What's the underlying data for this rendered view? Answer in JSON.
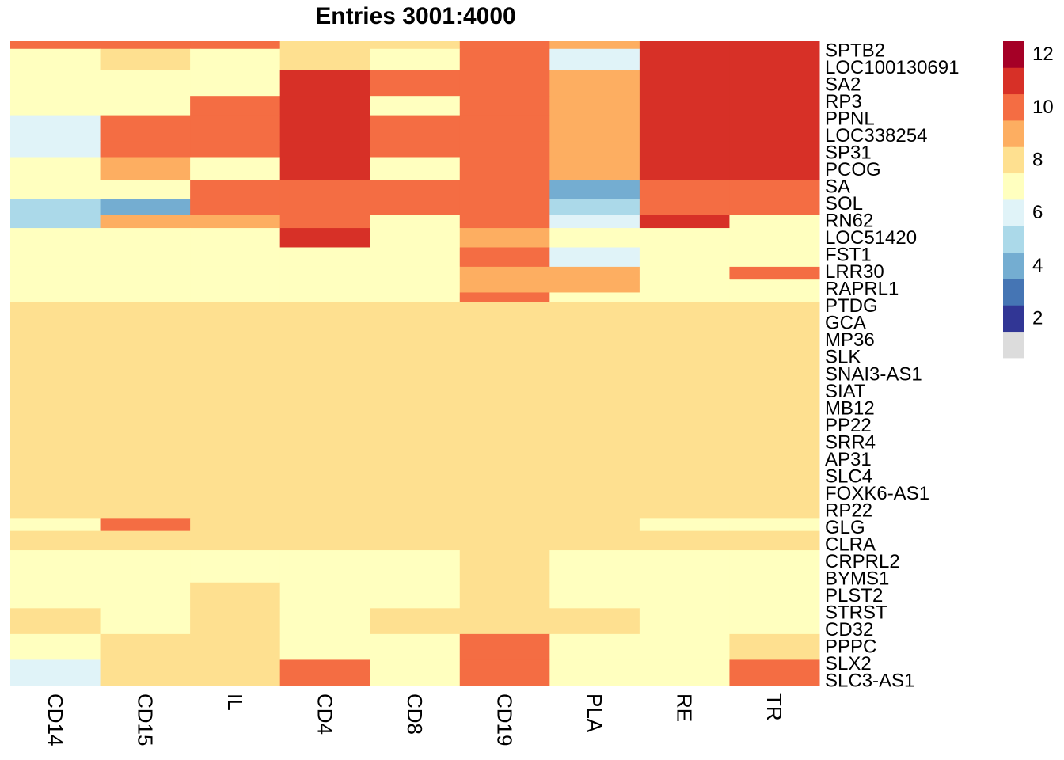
{
  "chart_data": {
    "type": "heatmap",
    "title": "Entries 3001:4000",
    "columns": [
      "CD14",
      "CD15",
      "IL",
      "CD4",
      "CD8",
      "CD19",
      "PLA",
      "RE",
      "TR"
    ],
    "row_count": 1000,
    "row_labels_visible": [
      "SPTB2",
      "LOC100130691",
      "SA2",
      "RP3",
      "PPNL",
      "LOC338254",
      "SP31",
      "PCOG",
      "SA",
      "SOL",
      "RN62",
      "LOC51420",
      "FST1",
      "LRR30",
      "RAPRL1",
      "PTDG",
      "GCA",
      "MP36",
      "SLK",
      "SNAI3-AS1",
      "SIAT",
      "MB12",
      "PP22",
      "SRR4",
      "AP31",
      "SLC4",
      "FOXK6-AS1",
      "RP22",
      "GLG",
      "CLRA",
      "CRPRL2",
      "BYMS1",
      "PLST2",
      "STRST",
      "CD32",
      "PPPC",
      "SLX2",
      "SLC3-AS1"
    ],
    "color_scale": {
      "min": 1,
      "max": 12,
      "ticks": [
        2,
        4,
        6,
        8,
        10,
        12
      ],
      "na_color": "#DCDCDC",
      "colors": [
        "#313695",
        "#4575B4",
        "#74ADD1",
        "#ABD9E9",
        "#E0F3F8",
        "#FFFFBF",
        "#FEE090",
        "#FDAE61",
        "#F46D43",
        "#D73027",
        "#A50026"
      ]
    },
    "segments": [
      {
        "rows": [
          0,
          12
        ],
        "values": [
          9,
          9,
          9,
          7,
          7,
          9,
          8,
          10,
          10
        ]
      },
      {
        "rows": [
          12,
          45
        ],
        "values": [
          6,
          7,
          6,
          7,
          6,
          9,
          5,
          10,
          10
        ]
      },
      {
        "rows": [
          45,
          85
        ],
        "values": [
          6,
          6,
          6,
          10,
          9,
          9,
          8,
          10,
          10
        ]
      },
      {
        "rows": [
          85,
          115
        ],
        "values": [
          6,
          6,
          9,
          10,
          6,
          9,
          8,
          10,
          10
        ]
      },
      {
        "rows": [
          115,
          155
        ],
        "values": [
          5,
          9,
          9,
          10,
          9,
          9,
          8,
          10,
          10
        ]
      },
      {
        "rows": [
          155,
          180
        ],
        "values": [
          5,
          9,
          9,
          10,
          9,
          9,
          8,
          10,
          10
        ]
      },
      {
        "rows": [
          180,
          215
        ],
        "values": [
          6,
          8,
          6,
          10,
          6,
          9,
          8,
          10,
          10
        ]
      },
      {
        "rows": [
          215,
          245
        ],
        "values": [
          6,
          6,
          9,
          9,
          9,
          9,
          3,
          9,
          9
        ]
      },
      {
        "rows": [
          245,
          270
        ],
        "values": [
          4,
          3,
          9,
          9,
          9,
          9,
          4,
          9,
          9
        ]
      },
      {
        "rows": [
          270,
          290
        ],
        "values": [
          4,
          8,
          8,
          9,
          6,
          9,
          5,
          10,
          6
        ]
      },
      {
        "rows": [
          290,
          320
        ],
        "values": [
          6,
          6,
          6,
          10,
          6,
          8,
          6,
          6,
          6
        ]
      },
      {
        "rows": [
          320,
          350
        ],
        "values": [
          6,
          6,
          6,
          6,
          6,
          9,
          5,
          6,
          6
        ]
      },
      {
        "rows": [
          350,
          370
        ],
        "values": [
          6,
          6,
          6,
          6,
          6,
          8,
          8,
          6,
          9
        ]
      },
      {
        "rows": [
          370,
          390
        ],
        "values": [
          6,
          6,
          6,
          6,
          6,
          8,
          8,
          6,
          6
        ]
      },
      {
        "rows": [
          390,
          405
        ],
        "values": [
          6,
          6,
          6,
          6,
          6,
          9,
          6,
          6,
          6
        ]
      },
      {
        "rows": [
          405,
          740
        ],
        "values": [
          7,
          7,
          7,
          7,
          7,
          7,
          7,
          7,
          7
        ]
      },
      {
        "rows": [
          740,
          760
        ],
        "values": [
          6,
          9,
          7,
          7,
          7,
          7,
          7,
          6,
          6
        ]
      },
      {
        "rows": [
          760,
          790
        ],
        "values": [
          7,
          7,
          7,
          7,
          7,
          7,
          7,
          7,
          7
        ]
      },
      {
        "rows": [
          790,
          840
        ],
        "values": [
          6,
          6,
          6,
          6,
          6,
          7,
          6,
          6,
          6
        ]
      },
      {
        "rows": [
          840,
          880
        ],
        "values": [
          6,
          6,
          7,
          6,
          6,
          7,
          6,
          6,
          6
        ]
      },
      {
        "rows": [
          880,
          920
        ],
        "values": [
          7,
          6,
          7,
          6,
          7,
          7,
          7,
          6,
          6
        ]
      },
      {
        "rows": [
          920,
          960
        ],
        "values": [
          6,
          7,
          7,
          6,
          6,
          9,
          6,
          6,
          7
        ]
      },
      {
        "rows": [
          960,
          1000
        ],
        "values": [
          5,
          7,
          7,
          9,
          6,
          9,
          6,
          6,
          9
        ]
      }
    ]
  }
}
